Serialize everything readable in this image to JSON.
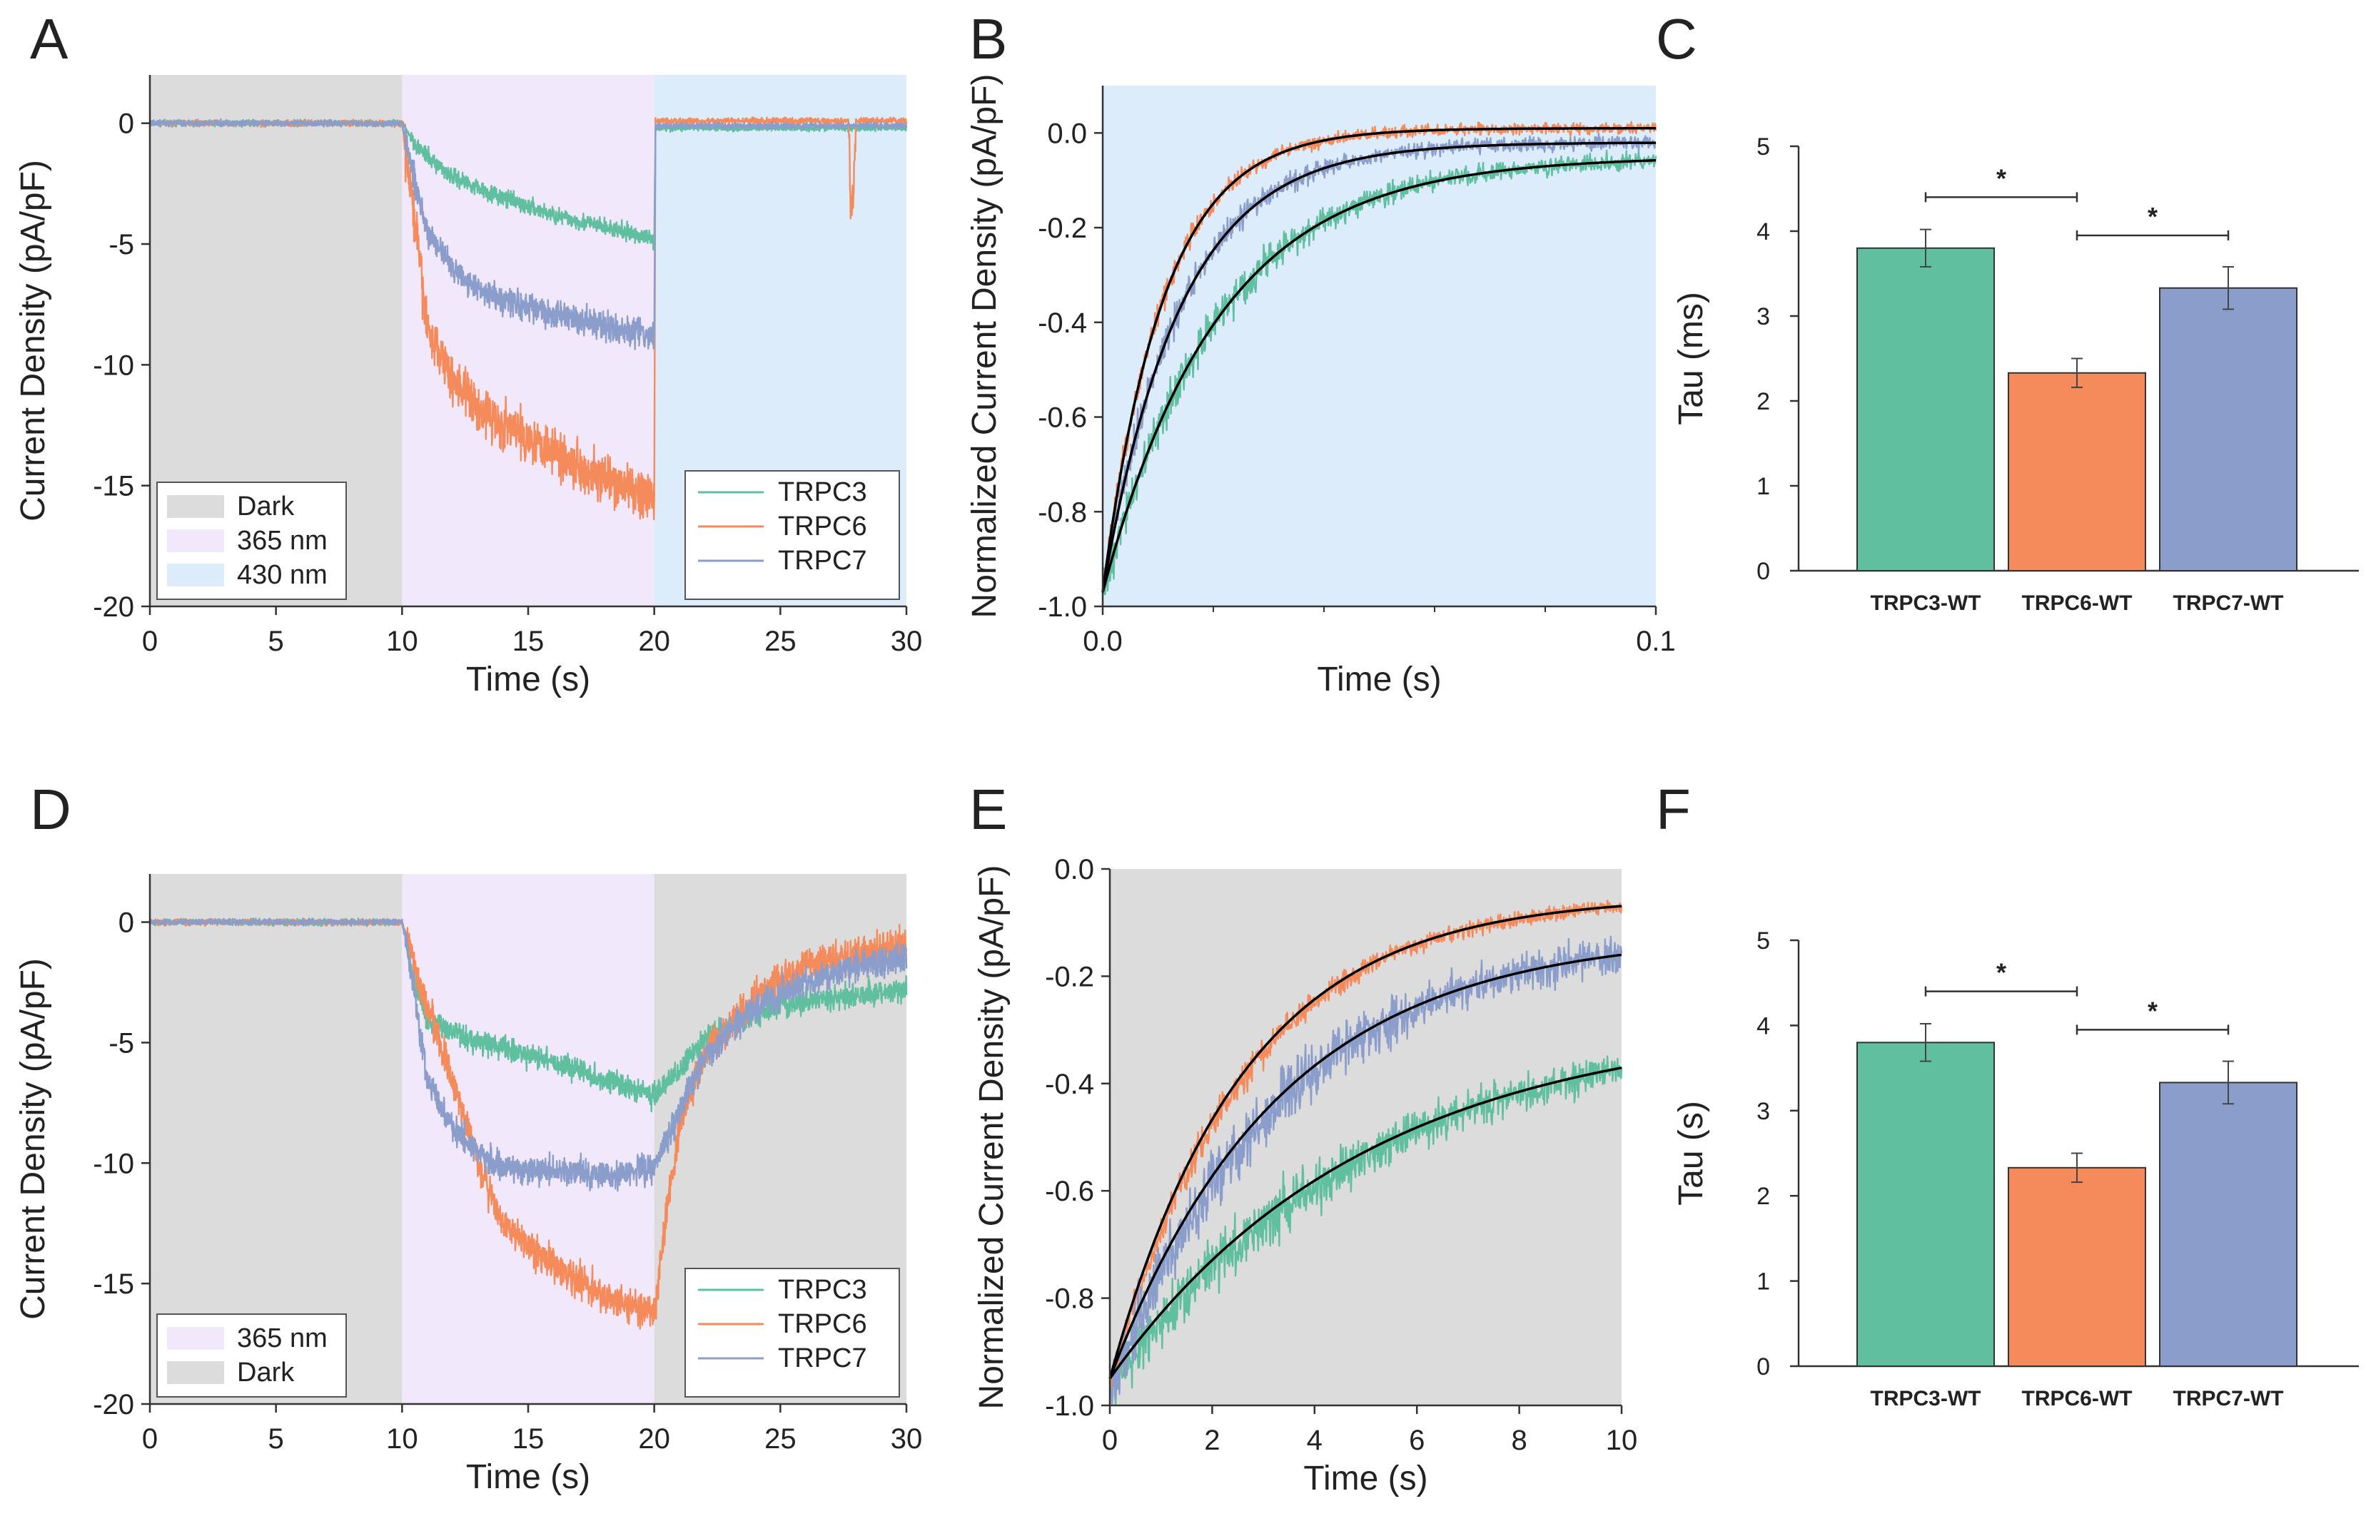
{
  "colors": {
    "dark": "#dcdcdc",
    "uv365": "#f2e8fb",
    "blue430": "#dcecfa",
    "TRPC3": "#5fbf9f",
    "TRPC6": "#f58a5a",
    "TRPC7": "#8b9ecb",
    "fit": "#000000"
  },
  "chart_data": [
    {
      "panel": "A",
      "type": "line",
      "xlabel": "Time (s)",
      "ylabel": "Current Density (pA/pF)",
      "xlim": [
        0,
        30
      ],
      "ylim": [
        -20,
        2
      ],
      "xticks": [
        "0",
        "5",
        "10",
        "15",
        "20",
        "25",
        "30"
      ],
      "yticks": [
        "0",
        "-5",
        "-10",
        "-15",
        "-20"
      ],
      "shading": [
        {
          "label": "Dark",
          "from": 0,
          "to": 10,
          "color": "dark"
        },
        {
          "label": "365 nm",
          "from": 10,
          "to": 20,
          "color": "uv365"
        },
        {
          "label": "430 nm",
          "from": 20,
          "to": 30,
          "color": "blue430"
        }
      ],
      "legend_shading": [
        "Dark",
        "365 nm",
        "430 nm"
      ],
      "legend_series": [
        "TRPC3",
        "TRPC6",
        "TRPC7"
      ],
      "series": [
        {
          "name": "TRPC3",
          "color": "TRPC3",
          "x": [
            0,
            10,
            10.5,
            11,
            12,
            14,
            16,
            18,
            20,
            20.05,
            25,
            30
          ],
          "y": [
            0,
            0,
            -0.8,
            -1.4,
            -2.2,
            -3.1,
            -3.8,
            -4.3,
            -4.8,
            -0.2,
            -0.2,
            -0.2
          ],
          "noise": 0.35
        },
        {
          "name": "TRPC6",
          "color": "TRPC6",
          "x": [
            0,
            10,
            10.5,
            11,
            12,
            13,
            14,
            16,
            18,
            20,
            20.05,
            27.7,
            27.8,
            27.9,
            28.0,
            30
          ],
          "y": [
            0,
            0,
            -4,
            -8.5,
            -10.5,
            -11.8,
            -12.5,
            -13.5,
            -14.8,
            -15.5,
            0.1,
            0.1,
            -3.5,
            -3.0,
            0.1,
            0.1
          ],
          "noise": 1.0
        },
        {
          "name": "TRPC7",
          "color": "TRPC7",
          "x": [
            0,
            10,
            10.5,
            11,
            12,
            13,
            14,
            16,
            18,
            20,
            20.05,
            30
          ],
          "y": [
            0,
            0,
            -2.5,
            -4.5,
            -6.0,
            -6.8,
            -7.3,
            -7.9,
            -8.4,
            -8.8,
            -0.1,
            -0.1
          ],
          "noise": 0.6
        }
      ]
    },
    {
      "panel": "B",
      "type": "line",
      "xlabel": "Time (s)",
      "ylabel": "Normalized Current Density (pA/pF)",
      "xlim": [
        0,
        0.1
      ],
      "ylim": [
        -1.0,
        0.1
      ],
      "xticks": [
        "0.0",
        "0.1"
      ],
      "yticks": [
        "0.0",
        "-0.2",
        "-0.4",
        "-0.6",
        "-0.8",
        "-1.0"
      ],
      "shading": [
        {
          "label": "430 nm",
          "from": 0,
          "to": 0.1,
          "color": "blue430"
        }
      ],
      "series": [
        {
          "name": "TRPC3",
          "color": "TRPC3",
          "tau": 0.021,
          "start": -0.97,
          "end": -0.05,
          "noise": 0.03
        },
        {
          "name": "TRPC6",
          "color": "TRPC6",
          "tau": 0.011,
          "start": -0.97,
          "end": 0.01,
          "noise": 0.02
        },
        {
          "name": "TRPC7",
          "color": "TRPC7",
          "tau": 0.014,
          "start": -0.97,
          "end": -0.02,
          "noise": 0.025
        }
      ],
      "fits": [
        {
          "tau": 0.021,
          "start": -0.97,
          "end": -0.05
        },
        {
          "tau": 0.011,
          "start": -0.97,
          "end": 0.01
        },
        {
          "tau": 0.014,
          "start": -0.97,
          "end": -0.02
        }
      ]
    },
    {
      "panel": "C",
      "type": "bar",
      "ylabel": "Tau (ms)",
      "ylim": [
        0,
        5
      ],
      "yticks": [
        "0",
        "1",
        "2",
        "3",
        "4",
        "5"
      ],
      "categories": [
        "TRPC3-WT",
        "TRPC6-WT",
        "TRPC7-WT"
      ],
      "values": [
        3.8,
        2.33,
        3.33
      ],
      "errors": [
        0.22,
        0.17,
        0.25
      ],
      "significance": [
        {
          "from": 0,
          "to": 1,
          "y": 4.4,
          "label": "*"
        },
        {
          "from": 1,
          "to": 2,
          "y": 3.95,
          "label": "*"
        }
      ]
    },
    {
      "panel": "D",
      "type": "line",
      "xlabel": "Time (s)",
      "ylabel": "Current Density (pA/pF)",
      "xlim": [
        0,
        30
      ],
      "ylim": [
        -20,
        2
      ],
      "xticks": [
        "0",
        "5",
        "10",
        "15",
        "20",
        "25",
        "30"
      ],
      "yticks": [
        "0",
        "-5",
        "-10",
        "-15",
        "-20"
      ],
      "shading": [
        {
          "label": "Dark",
          "from": 0,
          "to": 10,
          "color": "dark"
        },
        {
          "label": "365 nm",
          "from": 10,
          "to": 20,
          "color": "uv365"
        },
        {
          "label": "Dark",
          "from": 20,
          "to": 30,
          "color": "dark"
        }
      ],
      "legend_shading": [
        "365 nm",
        "Dark"
      ],
      "legend_series": [
        "TRPC3",
        "TRPC6",
        "TRPC7"
      ],
      "series": [
        {
          "name": "TRPC3",
          "color": "TRPC3",
          "x": [
            0,
            10,
            10.5,
            11,
            12,
            14,
            16,
            18,
            20,
            21,
            22,
            24,
            26,
            28,
            30
          ],
          "y": [
            0,
            0,
            -2.5,
            -4.0,
            -4.6,
            -5.2,
            -5.8,
            -6.5,
            -7.2,
            -6.2,
            -4.8,
            -3.8,
            -3.3,
            -3.0,
            -2.8
          ],
          "noise": 0.5
        },
        {
          "name": "TRPC6",
          "color": "TRPC6",
          "x": [
            0,
            10,
            11,
            12,
            13,
            14,
            16,
            18,
            20,
            20.5,
            21,
            22,
            24,
            26,
            28,
            30
          ],
          "y": [
            0,
            0,
            -3.5,
            -6.5,
            -10,
            -12.5,
            -14.2,
            -15.5,
            -16.3,
            -12,
            -8.5,
            -5.5,
            -3.0,
            -1.8,
            -1.3,
            -1.0
          ],
          "noise": 0.7
        },
        {
          "name": "TRPC7",
          "color": "TRPC7",
          "x": [
            0,
            10,
            10.5,
            11,
            12,
            13,
            14,
            16,
            18,
            20,
            21,
            22,
            24,
            26,
            28,
            30
          ],
          "y": [
            0,
            0,
            -3,
            -6.5,
            -8.5,
            -9.6,
            -10.2,
            -10.3,
            -10.5,
            -10.2,
            -7.8,
            -5.5,
            -3.5,
            -2.5,
            -1.8,
            -1.5
          ],
          "noise": 0.6
        }
      ]
    },
    {
      "panel": "E",
      "type": "line",
      "xlabel": "Time (s)",
      "ylabel": "Normalized Current Density (pA/pF)",
      "xlim": [
        0,
        10
      ],
      "ylim": [
        -1.0,
        0.0
      ],
      "xticks": [
        "0",
        "2",
        "4",
        "6",
        "8",
        "10"
      ],
      "yticks": [
        "0.0",
        "-0.2",
        "-0.4",
        "-0.6",
        "-0.8",
        "-1.0"
      ],
      "shading": [
        {
          "label": "Dark",
          "from": 0,
          "to": 10,
          "color": "dark"
        }
      ],
      "series": [
        {
          "name": "TRPC3",
          "color": "TRPC3",
          "tau": 5.0,
          "start": -0.97,
          "end": -0.28,
          "noise": 0.035
        },
        {
          "name": "TRPC6",
          "color": "TRPC6",
          "tau": 2.6,
          "start": -0.97,
          "end": -0.05,
          "noise": 0.02
        },
        {
          "name": "TRPC7",
          "color": "TRPC7",
          "tau": 3.3,
          "start": -0.97,
          "end": -0.12,
          "noise": 0.045
        }
      ],
      "fits": [
        {
          "tau": 5.0,
          "start": -0.95,
          "end": -0.28
        },
        {
          "tau": 2.6,
          "start": -0.95,
          "end": -0.05
        },
        {
          "tau": 3.3,
          "start": -0.95,
          "end": -0.12
        }
      ]
    },
    {
      "panel": "F",
      "type": "bar",
      "ylabel": "Tau (s)",
      "ylim": [
        0,
        5
      ],
      "yticks": [
        "0",
        "1",
        "2",
        "3",
        "4",
        "5"
      ],
      "categories": [
        "TRPC3-WT",
        "TRPC6-WT",
        "TRPC7-WT"
      ],
      "values": [
        3.8,
        2.33,
        3.33
      ],
      "errors": [
        0.22,
        0.17,
        0.25
      ],
      "significance": [
        {
          "from": 0,
          "to": 1,
          "y": 4.4,
          "label": "*"
        },
        {
          "from": 1,
          "to": 2,
          "y": 3.95,
          "label": "*"
        }
      ]
    }
  ]
}
